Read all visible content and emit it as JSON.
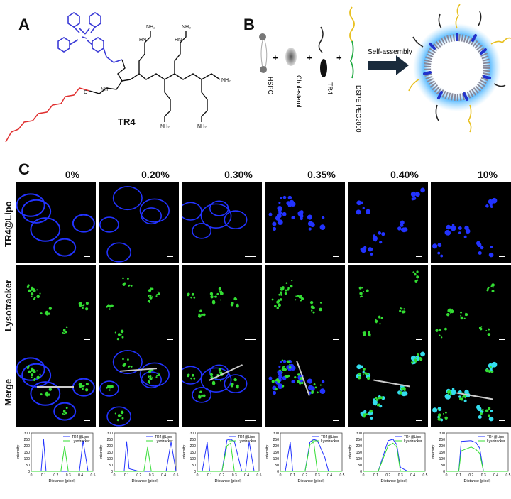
{
  "panels": {
    "a": "A",
    "b": "B",
    "c": "C"
  },
  "panel_a": {
    "compound_label": "TR4"
  },
  "panel_b": {
    "components": [
      "HSPC",
      "Cholesterol",
      "TR4",
      "DSPE-PEG2000"
    ],
    "plus": "+",
    "arrow_label": "Self-assembly"
  },
  "panel_c": {
    "concentrations": [
      "0%",
      "0.20%",
      "0.30%",
      "0.35%",
      "0.40%",
      "10%"
    ],
    "rows": [
      "TR4@Lipo",
      "Lysotracker",
      "Merge"
    ],
    "plot_legend": [
      "TR4@Lipo",
      "Lysotracker"
    ],
    "plot_xlabel": "Distance (pixel)",
    "plot_ylabel": "Intensity",
    "colors": {
      "blue": "#2233ff",
      "green": "#33dd33",
      "cyan": "#33ddee"
    }
  },
  "chart_data": [
    {
      "type": "line",
      "title": "0%",
      "xlabel": "Distance (pixel)",
      "ylabel": "Intensity",
      "xlim": [
        0,
        0.5
      ],
      "ylim": [
        0,
        300
      ],
      "x": [
        0,
        0.04,
        0.08,
        0.1,
        0.12,
        0.2,
        0.24,
        0.27,
        0.3,
        0.36,
        0.39,
        0.42,
        0.46,
        0.5
      ],
      "series": [
        {
          "name": "TR4@Lipo",
          "values": [
            0,
            0,
            0,
            250,
            0,
            0,
            0,
            0,
            0,
            0,
            0,
            240,
            0,
            0
          ]
        },
        {
          "name": "Lysotracker",
          "values": [
            0,
            0,
            0,
            0,
            0,
            0,
            0,
            195,
            0,
            0,
            0,
            0,
            0,
            0
          ]
        }
      ]
    },
    {
      "type": "line",
      "title": "0.20%",
      "xlabel": "Distance (pixel)",
      "ylabel": "Intensity",
      "xlim": [
        0,
        0.5
      ],
      "ylim": [
        0,
        300
      ],
      "x": [
        0,
        0.04,
        0.08,
        0.1,
        0.12,
        0.2,
        0.24,
        0.27,
        0.3,
        0.36,
        0.39,
        0.42,
        0.46,
        0.5
      ],
      "series": [
        {
          "name": "TR4@Lipo",
          "values": [
            0,
            0,
            0,
            235,
            20,
            0,
            0,
            0,
            0,
            0,
            0,
            0,
            230,
            0
          ]
        },
        {
          "name": "Lysotracker",
          "values": [
            0,
            0,
            0,
            0,
            0,
            0,
            0,
            190,
            0,
            0,
            0,
            0,
            0,
            0
          ]
        }
      ]
    },
    {
      "type": "line",
      "title": "0.30%",
      "xlabel": "Distance (pixel)",
      "ylabel": "Intensity",
      "xlim": [
        0,
        0.5
      ],
      "ylim": [
        0,
        300
      ],
      "x": [
        0,
        0.04,
        0.08,
        0.1,
        0.12,
        0.2,
        0.24,
        0.27,
        0.3,
        0.36,
        0.39,
        0.42,
        0.46,
        0.5
      ],
      "series": [
        {
          "name": "TR4@Lipo",
          "values": [
            0,
            0,
            230,
            0,
            0,
            0,
            245,
            250,
            235,
            0,
            0,
            230,
            0,
            0
          ]
        },
        {
          "name": "Lysotracker",
          "values": [
            0,
            0,
            0,
            0,
            0,
            0,
            200,
            220,
            0,
            0,
            0,
            0,
            0,
            0
          ]
        }
      ]
    },
    {
      "type": "line",
      "title": "0.35%",
      "xlabel": "Distance (pixel)",
      "ylabel": "Intensity",
      "xlim": [
        0,
        0.5
      ],
      "ylim": [
        0,
        300
      ],
      "x": [
        0,
        0.04,
        0.08,
        0.1,
        0.12,
        0.2,
        0.24,
        0.27,
        0.3,
        0.36,
        0.39,
        0.42,
        0.46,
        0.5
      ],
      "series": [
        {
          "name": "TR4@Lipo",
          "values": [
            0,
            0,
            230,
            0,
            0,
            0,
            230,
            250,
            240,
            110,
            0,
            0,
            0,
            0
          ]
        },
        {
          "name": "Lysotracker",
          "values": [
            0,
            0,
            0,
            0,
            0,
            0,
            210,
            230,
            0,
            0,
            0,
            0,
            0,
            0
          ]
        }
      ]
    },
    {
      "type": "line",
      "title": "0.40%",
      "xlabel": "Distance (pixel)",
      "ylabel": "Intensity",
      "xlim": [
        0,
        0.5
      ],
      "ylim": [
        0,
        300
      ],
      "x": [
        0,
        0.04,
        0.08,
        0.1,
        0.12,
        0.2,
        0.24,
        0.27,
        0.3,
        0.36,
        0.39,
        0.42,
        0.46,
        0.5
      ],
      "series": [
        {
          "name": "TR4@Lipo",
          "values": [
            0,
            0,
            0,
            0,
            0,
            240,
            250,
            210,
            30,
            0,
            0,
            0,
            0,
            0
          ]
        },
        {
          "name": "Lysotracker",
          "values": [
            0,
            0,
            0,
            0,
            0,
            200,
            220,
            190,
            0,
            0,
            0,
            0,
            0,
            0
          ]
        }
      ]
    },
    {
      "type": "line",
      "title": "10%",
      "xlabel": "Distance (pixel)",
      "ylabel": "Intensity",
      "xlim": [
        0,
        0.5
      ],
      "ylim": [
        0,
        300
      ],
      "x": [
        0,
        0.04,
        0.08,
        0.1,
        0.12,
        0.2,
        0.24,
        0.27,
        0.3,
        0.36,
        0.39,
        0.42,
        0.46,
        0.5
      ],
      "series": [
        {
          "name": "TR4@Lipo",
          "values": [
            0,
            0,
            0,
            0,
            235,
            240,
            225,
            180,
            0,
            0,
            0,
            0,
            0,
            0
          ]
        },
        {
          "name": "Lysotracker",
          "values": [
            0,
            0,
            0,
            0,
            160,
            190,
            170,
            140,
            0,
            0,
            0,
            0,
            0,
            0
          ]
        }
      ]
    }
  ]
}
